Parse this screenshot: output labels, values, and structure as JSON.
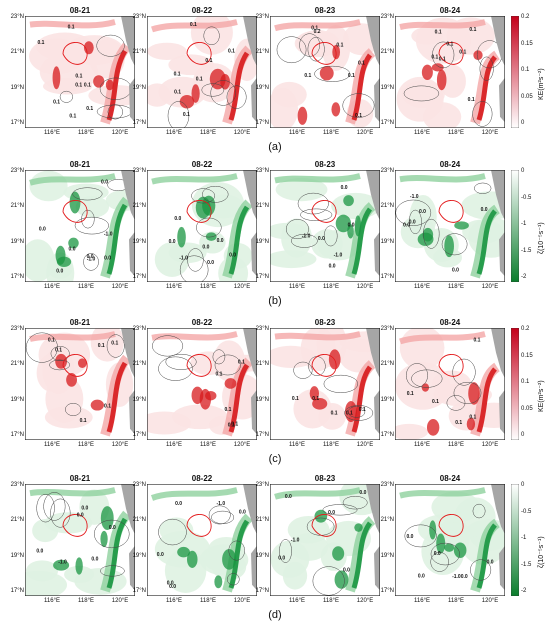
{
  "figure": {
    "rows": [
      {
        "id": "a",
        "sublabel": "(a)",
        "variable": "KE",
        "colorbar": {
          "label": "KE(m²s⁻²)",
          "ticks": [
            "0.2",
            "0.15",
            "0.1",
            "0.05",
            "0"
          ],
          "colormap": "white-red"
        },
        "panels": [
          {
            "date": "08-21",
            "contour_labels": [
              "0.1",
              "0.1",
              "0.1",
              "0.1",
              "0.1",
              "0.1",
              "0.1",
              "0.1"
            ]
          },
          {
            "date": "08-22",
            "contour_labels": [
              "0.1",
              "0.1",
              "0.1",
              "0.1",
              "0.1",
              "0.1",
              "0.1"
            ]
          },
          {
            "date": "08-23",
            "contour_labels": [
              "0.1",
              "0.1",
              "0.1",
              "0.1",
              "0.1",
              "0.1",
              "0.2"
            ]
          },
          {
            "date": "08-24",
            "contour_labels": [
              "0.1",
              "0.1",
              "0.1",
              "0.1",
              "0.1",
              "0.1",
              "0.1"
            ]
          }
        ]
      },
      {
        "id": "b",
        "sublabel": "(b)",
        "variable": "vorticity",
        "colorbar": {
          "label": "ζ(10⁻⁵s⁻¹)",
          "ticks": [
            "0",
            "-0.5",
            "-1",
            "-1.5",
            "-2"
          ],
          "colormap": "white-green"
        },
        "panels": [
          {
            "date": "08-21",
            "contour_labels": [
              "0.0",
              "0.0",
              "-1.0",
              "-1.0",
              "0.0",
              "0.0",
              "0.0",
              "0.0"
            ]
          },
          {
            "date": "08-22",
            "contour_labels": [
              "0.0",
              "0.0",
              "-1.0",
              "0.0",
              "0.0",
              "0.0",
              "0.0"
            ]
          },
          {
            "date": "08-23",
            "contour_labels": [
              "0.0",
              "-1.0",
              "0.0",
              "0.0",
              "-1.0",
              "0.0"
            ]
          },
          {
            "date": "08-24",
            "contour_labels": [
              "0.0",
              "-1.0",
              "0.0",
              "0.0",
              "0.0",
              "0.0"
            ]
          }
        ]
      },
      {
        "id": "c",
        "sublabel": "(c)",
        "variable": "KE",
        "colorbar": {
          "label": "KE(m²s⁻²)",
          "ticks": [
            "0.2",
            "0.15",
            "0.1",
            "0.05",
            "0"
          ],
          "colormap": "white-red"
        },
        "panels": [
          {
            "date": "08-21",
            "contour_labels": [
              "0.1",
              "0.1",
              "0.1",
              "0.1",
              "0.1",
              "0.1"
            ]
          },
          {
            "date": "08-22",
            "contour_labels": [
              "0.1",
              "0.1",
              "0.1",
              "0.1",
              "0.1"
            ]
          },
          {
            "date": "08-23",
            "contour_labels": [
              "0.1",
              "0.1",
              "0.1",
              "0.1",
              "0.1"
            ]
          },
          {
            "date": "08-24",
            "contour_labels": [
              "0.1",
              "0.1",
              "0.1",
              "0.1",
              "0.1"
            ]
          }
        ]
      },
      {
        "id": "d",
        "sublabel": "(d)",
        "variable": "vorticity",
        "colorbar": {
          "label": "ζ(10⁻⁵s⁻¹)",
          "ticks": [
            "0",
            "-0.5",
            "-1",
            "-1.5",
            "-2"
          ],
          "colormap": "white-green"
        },
        "panels": [
          {
            "date": "08-21",
            "contour_labels": [
              "0.0",
              "-1.0",
              "0.0",
              "0.0",
              "0.0",
              "0.0"
            ]
          },
          {
            "date": "08-22",
            "contour_labels": [
              "0.0",
              "-1.0",
              "0.0",
              "0.0",
              "0.0",
              "0.0"
            ]
          },
          {
            "date": "08-23",
            "contour_labels": [
              "0.0",
              "-1.0",
              "0.0",
              "0.0",
              "0.0",
              "0.0"
            ]
          },
          {
            "date": "08-24",
            "contour_labels": [
              "0.0",
              "-1.0",
              "0.0",
              "0.0",
              "0.0",
              "0.0"
            ]
          }
        ]
      }
    ],
    "axes": {
      "y_ticks": [
        "23°N",
        "21°N",
        "19°N",
        "17°N"
      ],
      "x_ticks": [
        "116°E",
        "118°E",
        "120°E"
      ]
    }
  },
  "chart_data": {
    "type": "heatmap",
    "panel_dates": [
      "08-21",
      "08-22",
      "08-23",
      "08-24"
    ],
    "lat_range": [
      17,
      23
    ],
    "lon_range": [
      115,
      121
    ],
    "rows": [
      {
        "id": "a",
        "field": "KE",
        "clim": [
          0,
          0.2
        ]
      },
      {
        "id": "b",
        "field": "vorticity",
        "clim": [
          -2,
          0
        ]
      },
      {
        "id": "c",
        "field": "KE",
        "clim": [
          0,
          0.2
        ]
      },
      {
        "id": "d",
        "field": "vorticity",
        "clim": [
          -2,
          0
        ]
      }
    ]
  }
}
